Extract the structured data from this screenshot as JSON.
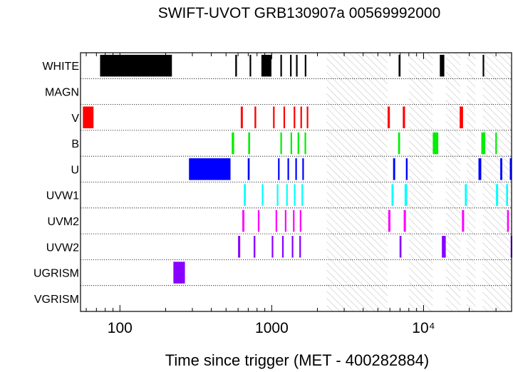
{
  "chart_data": {
    "type": "timeline",
    "title": "SWIFT-UVOT GRB130907a 00569992000",
    "xlabel": "Time since trigger (MET - 400282884)",
    "x_scale": "log",
    "xlim": [
      55,
      38000
    ],
    "x_ticks": [
      {
        "value": 100,
        "label": "100"
      },
      {
        "value": 1000,
        "label": "1000"
      },
      {
        "value": 10000,
        "label": "10⁴"
      }
    ],
    "filters": [
      "WHITE",
      "MAGN",
      "V",
      "B",
      "U",
      "UVW1",
      "UVM2",
      "UVW2",
      "UGRISM",
      "VGRISM"
    ],
    "colors": {
      "WHITE": "#000000",
      "MAGN": "#000000",
      "V": "#ff0000",
      "B": "#00ee00",
      "U": "#0000ff",
      "UVW1": "#00ffff",
      "UVM2": "#ff00ff",
      "UVW2": "#8800ff",
      "UGRISM": "#8800ff",
      "VGRISM": "#000000"
    },
    "gaps": [
      [
        2300,
        5800
      ],
      [
        8000,
        11500
      ],
      [
        14000,
        17500
      ],
      [
        19200,
        22000
      ],
      [
        24500,
        38000
      ]
    ],
    "exposures": {
      "WHITE": [
        [
          74,
          220
        ],
        [
          575,
          590
        ],
        [
          715,
          730
        ],
        [
          855,
          995
        ],
        [
          1140,
          1155
        ],
        [
          1320,
          1340
        ],
        [
          1445,
          1465
        ],
        [
          1650,
          1665
        ],
        [
          6850,
          7050
        ],
        [
          12800,
          13700
        ],
        [
          24500,
          24900
        ]
      ],
      "MAGN": [],
      "V": [
        [
          57,
          67
        ],
        [
          625,
          645
        ],
        [
          770,
          790
        ],
        [
          1020,
          1040
        ],
        [
          1195,
          1215
        ],
        [
          1395,
          1415
        ],
        [
          1545,
          1565
        ],
        [
          1700,
          1715
        ],
        [
          5800,
          6000
        ],
        [
          7300,
          7550
        ],
        [
          17300,
          18200
        ]
      ],
      "B": [
        [
          545,
          565
        ],
        [
          700,
          720
        ],
        [
          1140,
          1160
        ],
        [
          1330,
          1350
        ],
        [
          1480,
          1500
        ],
        [
          1645,
          1665
        ],
        [
          6800,
          7000
        ],
        [
          11500,
          12500
        ],
        [
          24000,
          25500
        ],
        [
          29700,
          30300
        ]
      ],
      "U": [
        [
          285,
          535
        ],
        [
          695,
          715
        ],
        [
          1100,
          1120
        ],
        [
          1270,
          1290
        ],
        [
          1430,
          1450
        ],
        [
          1590,
          1610
        ],
        [
          6300,
          6500
        ],
        [
          7650,
          7850
        ],
        [
          23000,
          24000
        ],
        [
          32000,
          33000
        ],
        [
          37000,
          38000
        ]
      ],
      "UVW1": [
        [
          655,
          675
        ],
        [
          860,
          880
        ],
        [
          1080,
          1100
        ],
        [
          1245,
          1265
        ],
        [
          1400,
          1420
        ],
        [
          1570,
          1590
        ],
        [
          6150,
          6350
        ],
        [
          7500,
          7800
        ],
        [
          18700,
          19300
        ],
        [
          30000,
          31000
        ],
        [
          35000,
          36000
        ]
      ],
      "UVM2": [
        [
          640,
          660
        ],
        [
          810,
          830
        ],
        [
          1060,
          1080
        ],
        [
          1220,
          1240
        ],
        [
          1380,
          1400
        ],
        [
          1530,
          1550
        ],
        [
          5850,
          6050
        ],
        [
          7400,
          7650
        ],
        [
          17900,
          18500
        ],
        [
          35500,
          36500
        ]
      ],
      "UVW2": [
        [
          600,
          620
        ],
        [
          760,
          780
        ],
        [
          1000,
          1020
        ],
        [
          1170,
          1190
        ],
        [
          1355,
          1375
        ],
        [
          1520,
          1540
        ],
        [
          6950,
          7150
        ],
        [
          13200,
          14000
        ],
        [
          37500,
          38000
        ]
      ],
      "UGRISM": [
        [
          225,
          268
        ]
      ],
      "VGRISM": []
    }
  }
}
